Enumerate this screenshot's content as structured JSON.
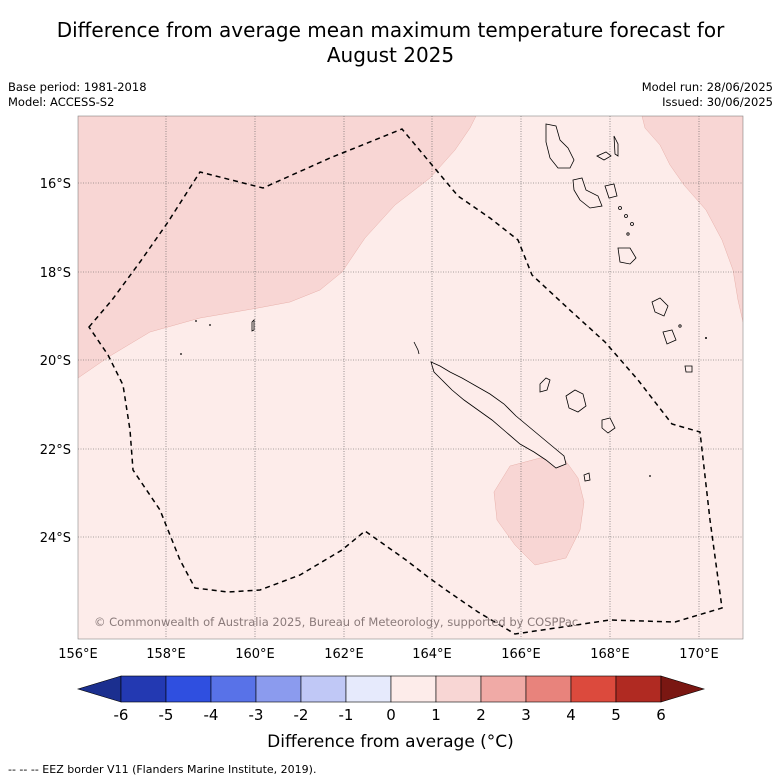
{
  "title_line1": "Difference from average mean maximum temperature forecast for",
  "title_line2": "August 2025",
  "base_period": "Base period: 1981-2018",
  "model": "Model: ACCESS-S2",
  "model_run": "Model run: 28/06/2025",
  "issued": "Issued: 30/06/2025",
  "copyright": "© Commonwealth of Australia 2025, Bureau of Meteorology, supported by COSPPac",
  "lon_ticks": [
    "156°E",
    "158°E",
    "160°E",
    "162°E",
    "164°E",
    "166°E",
    "168°E",
    "170°E"
  ],
  "lat_ticks": [
    "16°S",
    "18°S",
    "20°S",
    "22°S",
    "24°S"
  ],
  "colorbar": {
    "ticks": [
      "-6",
      "-5",
      "-4",
      "-3",
      "-2",
      "-1",
      "0",
      "1",
      "2",
      "3",
      "4",
      "5",
      "6"
    ],
    "colors": [
      "#1b2f8f",
      "#2339b2",
      "#2f4fe0",
      "#5872e8",
      "#8b9bee",
      "#c0c8f6",
      "#e6eafc",
      "#fdecea",
      "#f8d6d4",
      "#f0aaa6",
      "#e8837c",
      "#dc4a3d",
      "#b02a22",
      "#7a1712"
    ],
    "label": "Difference from average (°C)"
  },
  "legend_note": "--  --  -- EEZ border V11 (Flanders Marine Institute, 2019)."
}
